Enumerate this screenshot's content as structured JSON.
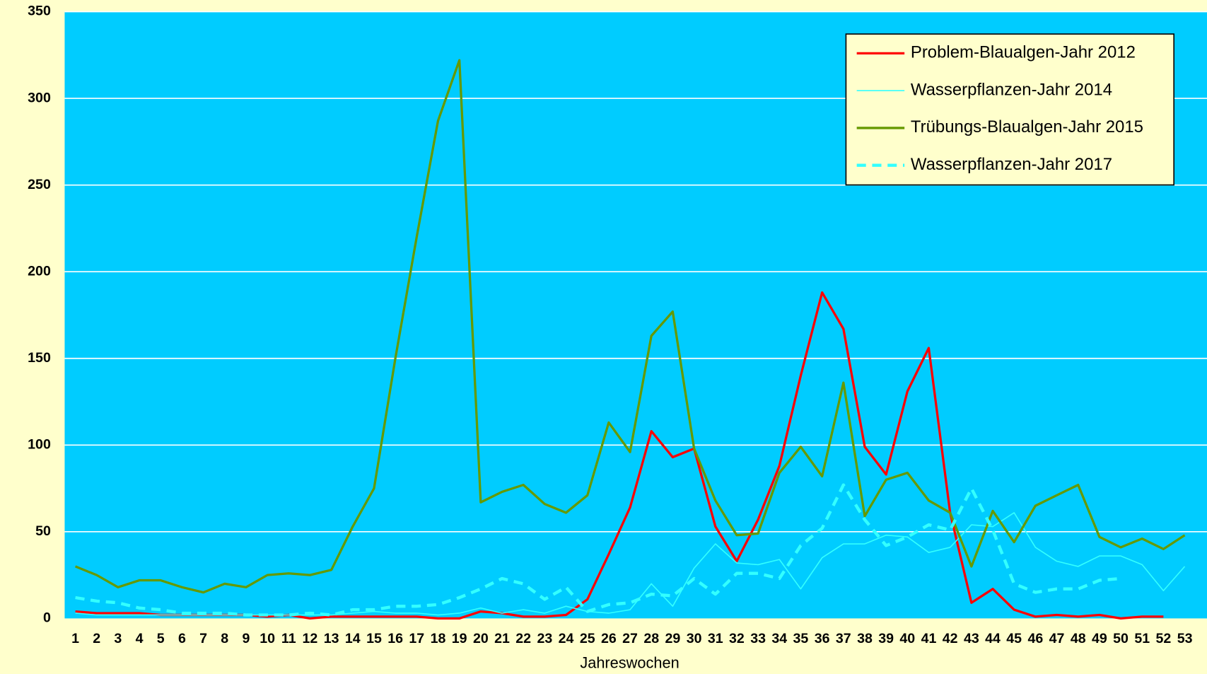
{
  "chart_data": {
    "type": "line",
    "x_label": "Jahreswochen",
    "categories": [
      "1",
      "2",
      "3",
      "4",
      "5",
      "6",
      "7",
      "8",
      "9",
      "10",
      "11",
      "12",
      "13",
      "14",
      "15",
      "16",
      "17",
      "18",
      "19",
      "20",
      "21",
      "22",
      "23",
      "24",
      "25",
      "26",
      "27",
      "28",
      "29",
      "30",
      "31",
      "32",
      "33",
      "34",
      "35",
      "36",
      "37",
      "38",
      "39",
      "40",
      "41",
      "42",
      "43",
      "44",
      "45",
      "46",
      "47",
      "48",
      "49",
      "50",
      "51",
      "52",
      "53"
    ],
    "ylim": [
      0,
      350
    ],
    "yticks": [
      0,
      50,
      100,
      150,
      200,
      250,
      300,
      350
    ],
    "grid": true,
    "legend": "upper right",
    "series": [
      {
        "name": "Problem-Blaualgen-Jahr 2012",
        "color": "#ff0000",
        "values": [
          4,
          3,
          3,
          3,
          2,
          2,
          2,
          2,
          2,
          1,
          2,
          0,
          1,
          1,
          1,
          1,
          1,
          0,
          0,
          4,
          3,
          1,
          1,
          2,
          11,
          37,
          64,
          108,
          93,
          98,
          53,
          33,
          57,
          88,
          140,
          188,
          167,
          99,
          83,
          131,
          156,
          61,
          9,
          17,
          5,
          1,
          2,
          1,
          2,
          0,
          1,
          1,
          null
        ]
      },
      {
        "name": "Wasserpflanzen-Jahr 2014",
        "color": "#33ffff",
        "values": [
          3,
          2,
          2,
          2,
          2,
          2,
          2,
          2,
          2,
          2,
          2,
          2,
          2,
          3,
          4,
          3,
          3,
          2,
          3,
          6,
          3,
          5,
          3,
          7,
          4,
          3,
          5,
          20,
          7,
          29,
          43,
          32,
          31,
          34,
          17,
          35,
          43,
          43,
          48,
          47,
          38,
          41,
          54,
          53,
          61,
          41,
          33,
          30,
          36,
          36,
          31,
          16,
          30
        ]
      },
      {
        "name": "Trübungs-Blaualgen-Jahr 2015",
        "color": "#669900",
        "values": [
          30,
          25,
          18,
          22,
          22,
          18,
          15,
          20,
          18,
          25,
          26,
          25,
          28,
          53,
          75,
          150,
          220,
          287,
          322,
          67,
          73,
          77,
          66,
          61,
          71,
          113,
          96,
          163,
          177,
          98,
          68,
          48,
          49,
          84,
          99,
          82,
          136,
          59,
          80,
          84,
          68,
          61,
          30,
          62,
          44,
          65,
          71,
          77,
          47,
          41,
          46,
          40,
          48
        ]
      },
      {
        "name": "Wasserpflanzen-Jahr 2017",
        "color": "#33ffff",
        "dashed": true,
        "values": [
          12,
          10,
          9,
          6,
          5,
          3,
          3,
          3,
          2,
          2,
          2,
          3,
          2,
          5,
          5,
          7,
          7,
          8,
          12,
          17,
          23,
          20,
          11,
          18,
          4,
          8,
          9,
          14,
          13,
          23,
          14,
          26,
          26,
          23,
          42,
          52,
          77,
          57,
          42,
          47,
          54,
          51,
          75,
          51,
          20,
          15,
          17,
          17,
          22,
          23,
          null,
          null,
          null
        ]
      }
    ]
  }
}
